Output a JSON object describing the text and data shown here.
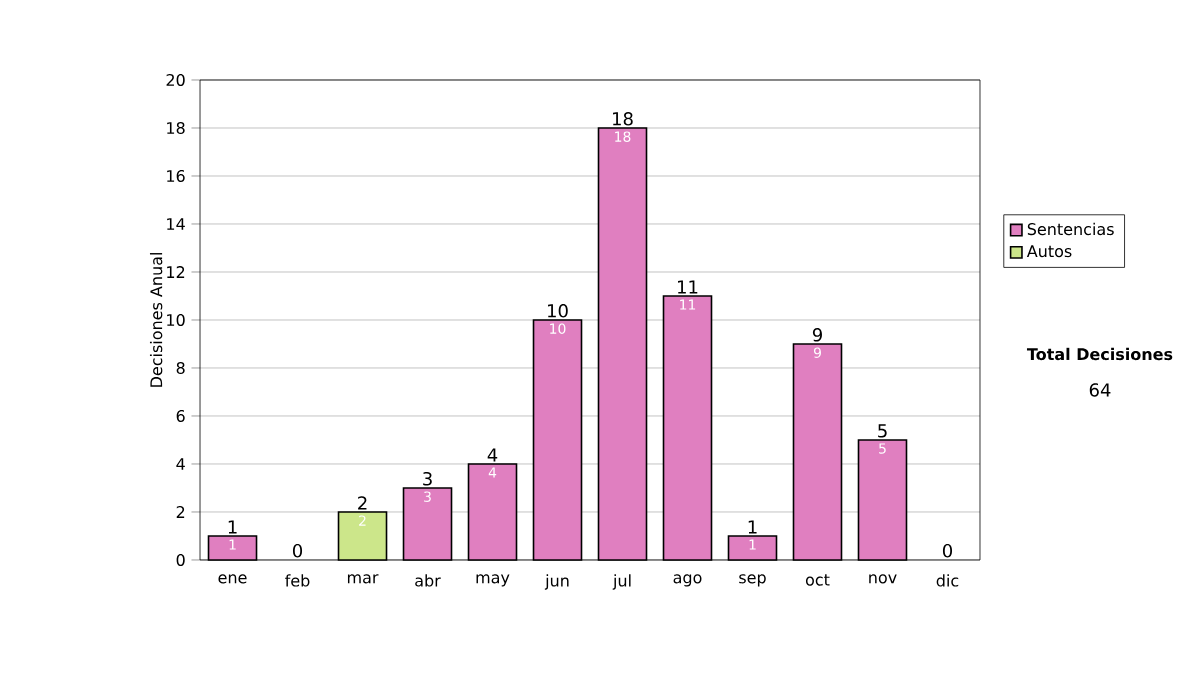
{
  "chart_data": {
    "type": "bar",
    "stacked": true,
    "ylabel": "Decisiones Anual",
    "categories": [
      "ene",
      "feb",
      "mar",
      "abr",
      "may",
      "jun",
      "jul",
      "ago",
      "sep",
      "oct",
      "nov",
      "dic"
    ],
    "series": [
      {
        "name": "Sentencias",
        "color": "#e07fc0",
        "values": [
          1,
          0,
          0,
          3,
          4,
          10,
          18,
          11,
          1,
          9,
          5,
          0
        ],
        "value_labels": [
          "1",
          null,
          null,
          "3",
          "4",
          "10",
          "18",
          "11",
          "1",
          "9",
          "5",
          null
        ]
      },
      {
        "name": "Autos",
        "color": "#cce68a",
        "values": [
          0,
          0,
          2,
          0,
          0,
          0,
          0,
          0,
          0,
          0,
          0,
          0
        ],
        "value_labels": [
          null,
          null,
          "2",
          null,
          null,
          null,
          null,
          null,
          null,
          null,
          null,
          null
        ]
      }
    ],
    "totals": [
      "1",
      "0",
      "2",
      "3",
      "4",
      "10",
      "18",
      "11",
      "1",
      "9",
      "5",
      "0"
    ],
    "ylim": [
      0,
      20
    ],
    "yticks": [
      0,
      2,
      4,
      6,
      8,
      10,
      12,
      14,
      16,
      18,
      20
    ],
    "grid": "y",
    "legend": "right",
    "annotations": [
      "Total Decisiones",
      "64"
    ]
  }
}
